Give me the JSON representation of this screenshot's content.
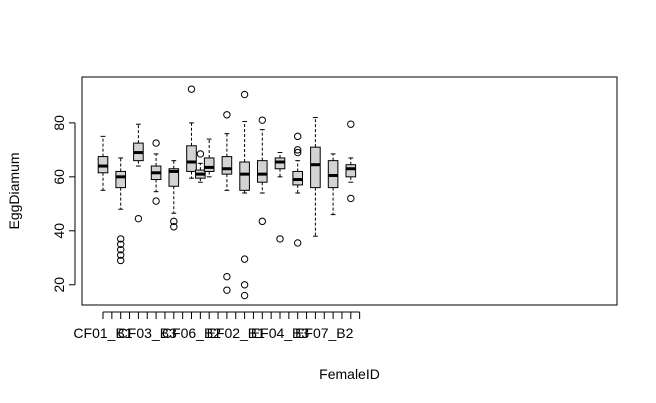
{
  "chart_data": {
    "type": "box",
    "xlabel": "FemaleID",
    "ylabel": "EggDiamum",
    "ylim": [
      12.5,
      97
    ],
    "yticks": [
      20,
      40,
      60,
      80
    ],
    "grid": false,
    "box_fill": "#D3D3D3",
    "tick_labels": [
      {
        "category_index": 0,
        "text": "CF01_B1"
      },
      {
        "category_index": 5,
        "text": "CF03_B3"
      },
      {
        "category_index": 10,
        "text": "CF06_B2"
      },
      {
        "category_index": 15,
        "text": "EF02_B1"
      },
      {
        "category_index": 20,
        "text": "EF04_B3"
      },
      {
        "category_index": 25,
        "text": "EF07_B2"
      }
    ],
    "boxes": [
      {
        "index": 0,
        "lower_whisker": 55,
        "q1": 61.5,
        "median": 64,
        "q3": 67.5,
        "upper_whisker": 75,
        "outliers": []
      },
      {
        "index": 2,
        "lower_whisker": 48,
        "q1": 56,
        "median": 60,
        "q3": 62,
        "upper_whisker": 67,
        "outliers": [
          37,
          35,
          33,
          31,
          29
        ]
      },
      {
        "index": 4,
        "lower_whisker": 64,
        "q1": 66,
        "median": 69,
        "q3": 72.5,
        "upper_whisker": 79.5,
        "outliers": [
          44.5
        ]
      },
      {
        "index": 6,
        "lower_whisker": 54.5,
        "q1": 59,
        "median": 61.5,
        "q3": 64,
        "upper_whisker": 68.5,
        "outliers": [
          72.5,
          51
        ]
      },
      {
        "index": 8,
        "lower_whisker": 46.5,
        "q1": 56.5,
        "median": 62,
        "q3": 63,
        "upper_whisker": 66,
        "outliers": [
          43.5,
          41.5
        ]
      },
      {
        "index": 10,
        "lower_whisker": 59.5,
        "q1": 62,
        "median": 65.5,
        "q3": 71.5,
        "upper_whisker": 80,
        "outliers": [
          92.5
        ]
      },
      {
        "index": 11,
        "lower_whisker": 58,
        "q1": 59.5,
        "median": 61,
        "q3": 62.5,
        "upper_whisker": 65,
        "outliers": [
          68.5
        ]
      },
      {
        "index": 12,
        "lower_whisker": 60,
        "q1": 62,
        "median": 63.5,
        "q3": 67,
        "upper_whisker": 74,
        "outliers": []
      },
      {
        "index": 14,
        "lower_whisker": 55,
        "q1": 61,
        "median": 63,
        "q3": 67.5,
        "upper_whisker": 76,
        "outliers": [
          83,
          23,
          18
        ]
      },
      {
        "index": 16,
        "lower_whisker": 54,
        "q1": 55,
        "median": 61,
        "q3": 65.5,
        "upper_whisker": 80.5,
        "outliers": [
          90.5,
          29.5,
          20,
          16
        ]
      },
      {
        "index": 18,
        "lower_whisker": 54,
        "q1": 58,
        "median": 61,
        "q3": 66,
        "upper_whisker": 77.5,
        "outliers": [
          81,
          43.5
        ]
      },
      {
        "index": 20,
        "lower_whisker": 60,
        "q1": 63,
        "median": 65.5,
        "q3": 67,
        "upper_whisker": 69,
        "outliers": [
          37
        ]
      },
      {
        "index": 22,
        "lower_whisker": 54,
        "q1": 57,
        "median": 59,
        "q3": 62,
        "upper_whisker": 66,
        "outliers": [
          75,
          70,
          69,
          35.5
        ]
      },
      {
        "index": 24,
        "lower_whisker": 38,
        "q1": 56,
        "median": 64.5,
        "q3": 71,
        "upper_whisker": 82,
        "outliers": []
      },
      {
        "index": 26,
        "lower_whisker": 46,
        "q1": 56,
        "median": 60.5,
        "q3": 66,
        "upper_whisker": 68.5,
        "outliers": []
      },
      {
        "index": 28,
        "lower_whisker": 58,
        "q1": 60,
        "median": 63,
        "q3": 64.5,
        "upper_whisker": 67,
        "outliers": [
          79.5,
          52
        ]
      }
    ],
    "category_count": 30
  }
}
